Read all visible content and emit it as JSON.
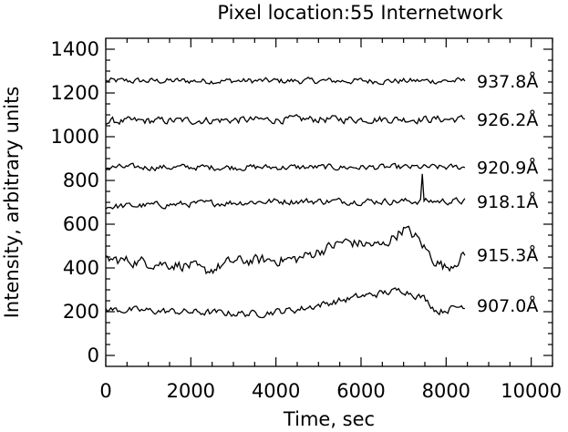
{
  "chart_data": {
    "type": "line",
    "title": "Pixel location:55 Internetwork",
    "xlabel": "Time, sec",
    "ylabel": "Intensity, arbitrary units",
    "xlim": [
      0,
      10500
    ],
    "ylim": [
      -50,
      1450
    ],
    "xticks": [
      0,
      2000,
      4000,
      6000,
      8000,
      10000
    ],
    "yticks": [
      0,
      200,
      400,
      600,
      800,
      1000,
      1200,
      1400
    ],
    "xminor_step": 500,
    "yminor_step": 50,
    "grid": false,
    "legend": "none",
    "x_end": 8450,
    "series": [
      {
        "name": "937.8Å",
        "label": "937.8Å",
        "base": 1255,
        "noise": 12,
        "spikes": [],
        "trend": [
          [
            0,
            0
          ],
          [
            8450,
            0
          ]
        ]
      },
      {
        "name": "926.2Å",
        "label": "926.2Å",
        "base": 1070,
        "noise": 15,
        "spikes": [],
        "trend": [
          [
            0,
            0
          ],
          [
            5000,
            10
          ],
          [
            8450,
            10
          ]
        ]
      },
      {
        "name": "920.9Å",
        "label": "920.9Å",
        "base": 860,
        "noise": 12,
        "spikes": [],
        "trend": [
          [
            0,
            0
          ],
          [
            8450,
            0
          ]
        ]
      },
      {
        "name": "918.1Å",
        "label": "918.1Å",
        "base": 680,
        "noise": 13,
        "spikes": [
          [
            7450,
            830
          ]
        ],
        "trend": [
          [
            0,
            0
          ],
          [
            4000,
            25
          ],
          [
            8450,
            25
          ]
        ]
      },
      {
        "name": "915.3Å",
        "label": "915.3Å",
        "base": 440,
        "noise": 22,
        "spikes": [
          [
            2300,
            320
          ]
        ],
        "trend": [
          [
            0,
            0
          ],
          [
            2000,
            -30
          ],
          [
            2300,
            -60
          ],
          [
            3000,
            -10
          ],
          [
            4500,
            0
          ],
          [
            5600,
            80
          ],
          [
            6500,
            60
          ],
          [
            7000,
            140
          ],
          [
            7300,
            100
          ],
          [
            7700,
            0
          ],
          [
            8000,
            -40
          ],
          [
            8450,
            20
          ]
        ]
      },
      {
        "name": "907.0Å",
        "label": "907.0Å",
        "base": 210,
        "noise": 14,
        "spikes": [],
        "trend": [
          [
            0,
            0
          ],
          [
            3500,
            -20
          ],
          [
            4500,
            0
          ],
          [
            6000,
            60
          ],
          [
            7000,
            90
          ],
          [
            7500,
            50
          ],
          [
            7800,
            -10
          ],
          [
            8450,
            20
          ]
        ]
      }
    ]
  }
}
